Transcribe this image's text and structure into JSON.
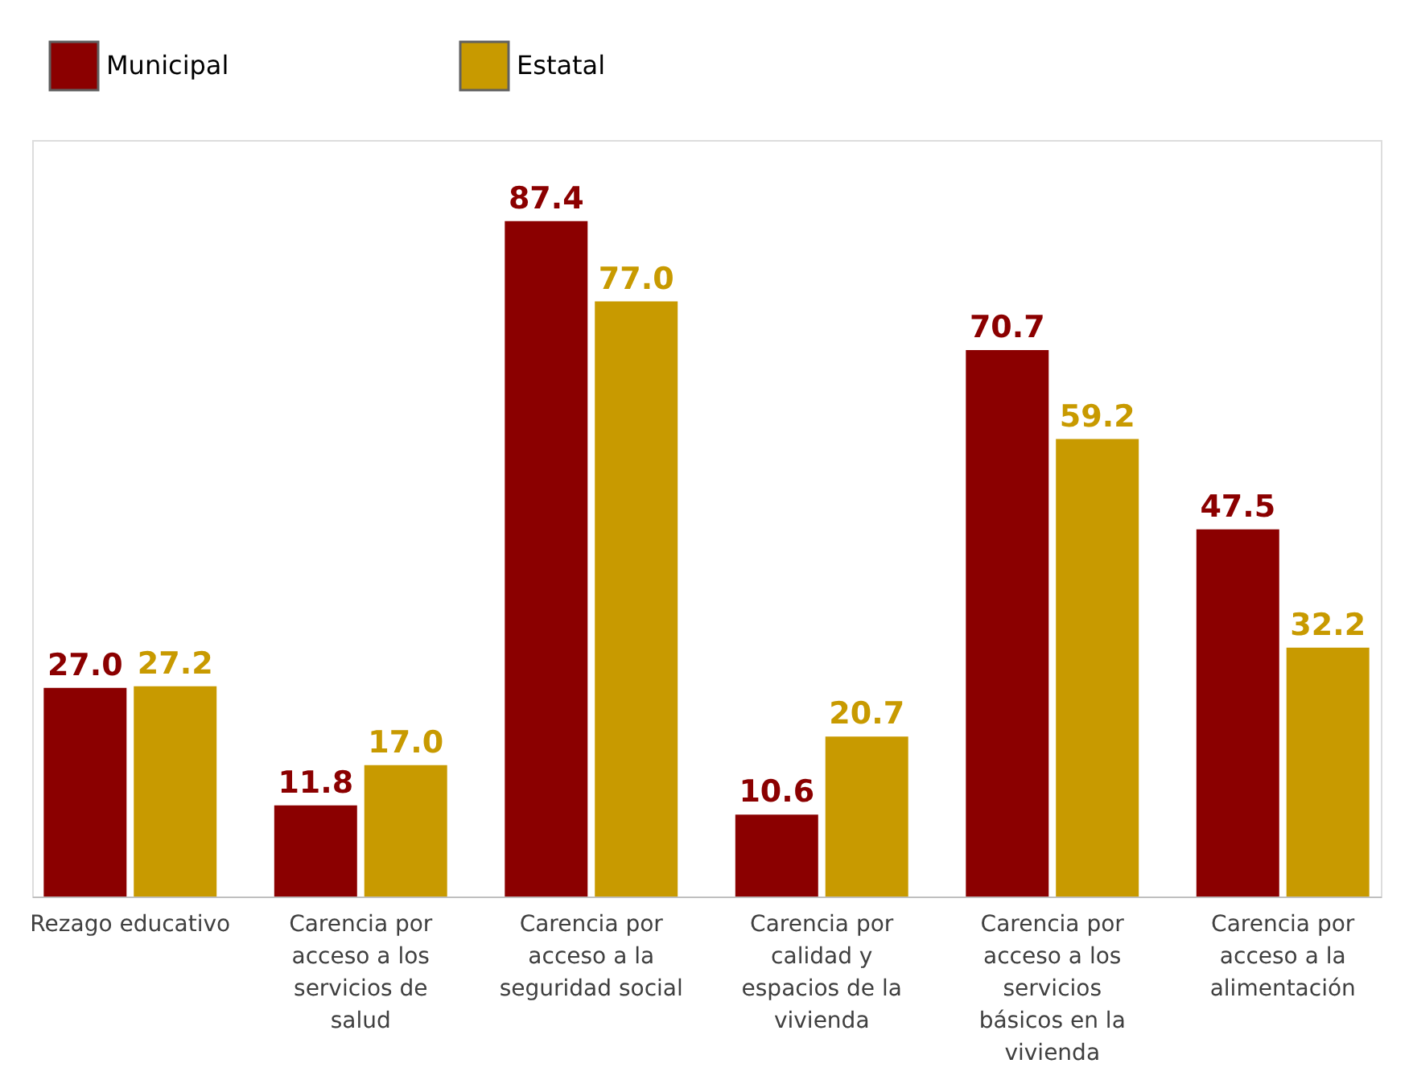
{
  "chart_data": {
    "type": "bar",
    "categories": [
      "Rezago educativo",
      "Carencia por acceso a los servicios de salud",
      "Carencia por acceso a la seguridad social",
      "Carencia por calidad y espacios de la vivienda",
      "Carencia por acceso a los servicios básicos en la vivienda",
      "Carencia por acceso a la alimentación"
    ],
    "series": [
      {
        "name": "Municipal",
        "color": "#8b0000",
        "values": [
          27.0,
          11.8,
          87.4,
          10.6,
          70.7,
          47.5
        ],
        "value_labels": [
          "27.0",
          "11.8",
          "87.4",
          "10.6",
          "70.7",
          "47.5"
        ]
      },
      {
        "name": "Estatal",
        "color": "#c89a00",
        "values": [
          27.2,
          17.0,
          77.0,
          20.7,
          59.2,
          32.2
        ],
        "value_labels": [
          "27.2",
          "17.0",
          "77.0",
          "20.7",
          "59.2",
          "32.2"
        ]
      }
    ],
    "legend": "top",
    "grid": false
  }
}
